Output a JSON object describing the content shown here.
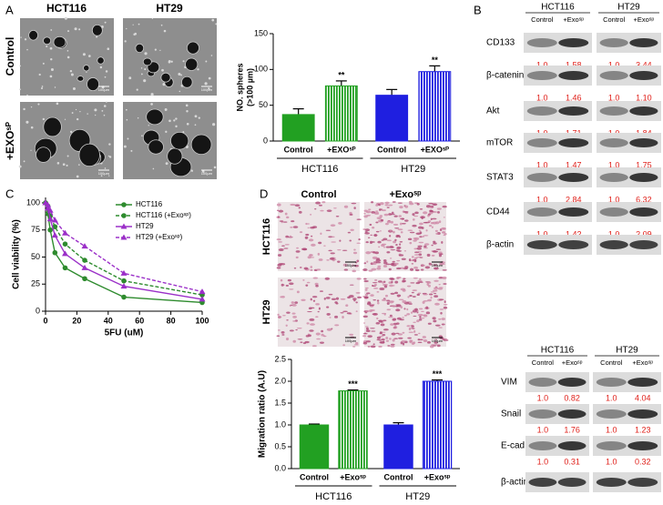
{
  "panel_labels": [
    "A",
    "B",
    "C",
    "D"
  ],
  "panel_a": {
    "columns": [
      "HCT116",
      "HT29"
    ],
    "rows": [
      "Control",
      "+EXOˢᴾ"
    ],
    "scale_bars": [
      "100µm",
      "100µm",
      "100µm",
      "100µm"
    ]
  },
  "panel_b": {
    "top": {
      "cell_lines": [
        "HCT116",
        "HT29"
      ],
      "conditions": [
        "Control",
        "+Exoˢᵖ",
        "Control",
        "+Exoˢᵖ"
      ],
      "rows": [
        {
          "protein": "CD133",
          "ratios": [
            "1.0",
            "1.58",
            "1.0",
            "3.44"
          ]
        },
        {
          "protein": "β-catenin",
          "ratios": [
            "1.0",
            "1.46",
            "1.0",
            "1.10"
          ]
        },
        {
          "protein": "Akt",
          "ratios": [
            "1.0",
            "1.71",
            "1.0",
            "1.84"
          ]
        },
        {
          "protein": "mTOR",
          "ratios": [
            "1.0",
            "1.47",
            "1.0",
            "1.75"
          ]
        },
        {
          "protein": "STAT3",
          "ratios": [
            "1.0",
            "2.84",
            "1.0",
            "6.32"
          ]
        },
        {
          "protein": "CD44",
          "ratios": [
            "1.0",
            "1.42",
            "1.0",
            "2.09"
          ]
        },
        {
          "protein": "β-actin"
        }
      ]
    },
    "bottom": {
      "cell_lines": [
        "HCT116",
        "HT29"
      ],
      "conditions": [
        "Control",
        "+Exoˢᵖ",
        "Control",
        "+Exoˢᵖ"
      ],
      "rows": [
        {
          "protein": "VIM",
          "ratios": [
            "1.0",
            "0.82",
            "1.0",
            "4.04"
          ]
        },
        {
          "protein": "Snail",
          "ratios": [
            "1.0",
            "1.76",
            "1.0",
            "1.23"
          ]
        },
        {
          "protein": "E-cad",
          "ratios": [
            "1.0",
            "0.31",
            "1.0",
            "0.32"
          ]
        },
        {
          "protein": "β-actin"
        }
      ]
    }
  },
  "panel_d": {
    "columns": [
      "Control",
      "+Exoˢᵖ"
    ],
    "rows": [
      "HCT116",
      "HT29"
    ],
    "scale_bars": [
      "100µm",
      "100µm",
      "100µm",
      "100µm"
    ]
  },
  "chart_data": [
    {
      "type": "bar",
      "ylabel": [
        "NO. spheres",
        "(>100 µm)"
      ],
      "categories": [
        "Control",
        "+EXOˢᴾ",
        "Control",
        "+EXOˢᴾ"
      ],
      "groups": [
        "HCT116",
        "HT29"
      ],
      "values": [
        37,
        77,
        64,
        97
      ],
      "errors": [
        8,
        7,
        8,
        8
      ],
      "annotations": [
        null,
        "**",
        null,
        "**"
      ],
      "colors": [
        "#22a022",
        "#22a022",
        "#1f1fe0",
        "#1f1fe0"
      ],
      "hatched": [
        false,
        true,
        false,
        true
      ],
      "ylim": [
        0,
        150
      ],
      "yticks": [
        0,
        50,
        100,
        150
      ]
    },
    {
      "type": "line",
      "xlabel": "5FU (uM)",
      "ylabel": "Cell viability (%)",
      "x": [
        0,
        1.5,
        3,
        6,
        12.5,
        25,
        50,
        100
      ],
      "series": [
        {
          "name": "HCT116",
          "color": "#2e8b2e",
          "dash": false,
          "marker": "circle",
          "values": [
            100,
            90,
            75,
            54,
            40,
            30,
            13,
            8
          ]
        },
        {
          "name": "HCT116 (+Exoˢᵖ)",
          "color": "#2e8b2e",
          "dash": true,
          "marker": "circle",
          "values": [
            100,
            97,
            88,
            78,
            62,
            47,
            28,
            15
          ]
        },
        {
          "name": "HT29",
          "color": "#9b30c8",
          "dash": false,
          "marker": "triangle",
          "values": [
            100,
            95,
            85,
            70,
            53,
            40,
            23,
            11
          ]
        },
        {
          "name": "HT29 (+Exoˢᵖ)",
          "color": "#9b30c8",
          "dash": true,
          "marker": "triangle",
          "values": [
            100,
            98,
            93,
            84,
            72,
            60,
            35,
            18
          ]
        }
      ],
      "xlim": [
        0,
        100
      ],
      "ylim": [
        0,
        105
      ],
      "xticks": [
        0,
        20,
        40,
        60,
        80,
        100
      ],
      "yticks": [
        0,
        25,
        50,
        75,
        100
      ],
      "legend": "upper right"
    },
    {
      "type": "bar",
      "ylabel": "Migration ratio (A.U)",
      "categories": [
        "Control",
        "+Exoˢᵖ",
        "Control",
        "+Exoˢᵖ"
      ],
      "groups": [
        "HCT116",
        "HT29"
      ],
      "values": [
        1.0,
        1.78,
        1.0,
        2.0
      ],
      "errors": [
        0.02,
        0.02,
        0.05,
        0.03
      ],
      "annotations": [
        null,
        "***",
        null,
        "***"
      ],
      "colors": [
        "#22a022",
        "#22a022",
        "#1f1fe0",
        "#1f1fe0"
      ],
      "hatched": [
        false,
        true,
        false,
        true
      ],
      "ylim": [
        0,
        2.5
      ],
      "yticks": [
        {
          "value": 0,
          "label": "0.0"
        },
        {
          "value": 0.5,
          "label": "0.5"
        },
        {
          "value": 1,
          "label": "1.0"
        },
        {
          "value": 1.5,
          "label": "1.5"
        },
        {
          "value": 2,
          "label": "2.0"
        },
        {
          "value": 2.5,
          "label": "2.5"
        }
      ]
    }
  ]
}
